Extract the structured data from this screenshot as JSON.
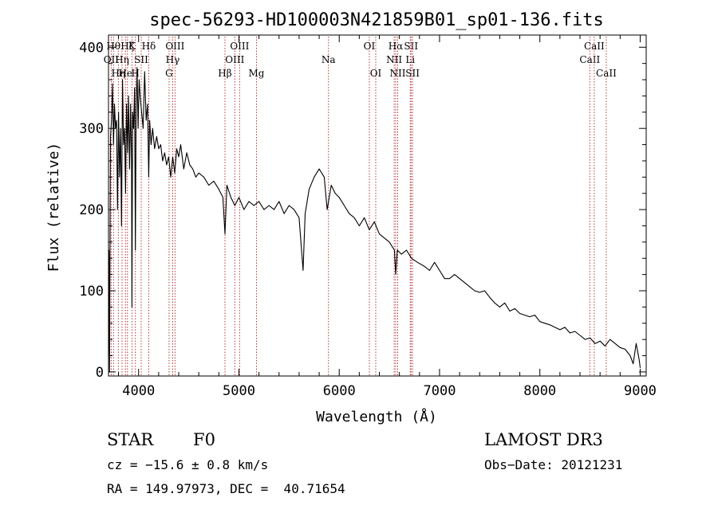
{
  "chart_data": {
    "type": "line",
    "title": "spec-56293-HD100003N421859B01_sp01-136.fits",
    "xlabel": "Wavelength (Å)",
    "ylabel": "Flux (relative)",
    "xlim": [
      3700,
      9060
    ],
    "ylim": [
      -5,
      415
    ],
    "xticks": [
      4000,
      5000,
      6000,
      7000,
      8000,
      9000
    ],
    "yticks": [
      0,
      100,
      200,
      300,
      400
    ],
    "grid": false,
    "line_color": "#000000",
    "marker_color": "#b22222",
    "series": [
      {
        "x": [
          3700,
          3705,
          3710,
          3720,
          3730,
          3740,
          3750,
          3760,
          3770,
          3780,
          3790,
          3800,
          3810,
          3820,
          3830,
          3840,
          3850,
          3860,
          3870,
          3880,
          3890,
          3900,
          3910,
          3920,
          3930,
          3934,
          3940,
          3950,
          3960,
          3968,
          3975,
          3985,
          3995,
          4005,
          4015,
          4030,
          4045,
          4060,
          4075,
          4090,
          4101,
          4110,
          4125,
          4140,
          4160,
          4180,
          4200,
          4220,
          4240,
          4260,
          4280,
          4300,
          4320,
          4340,
          4360,
          4380,
          4400,
          4420,
          4450,
          4480,
          4510,
          4540,
          4570,
          4600,
          4650,
          4700,
          4750,
          4800,
          4840,
          4861,
          4880,
          4920,
          4960,
          5000,
          5050,
          5100,
          5150,
          5200,
          5250,
          5300,
          5350,
          5400,
          5450,
          5500,
          5550,
          5600,
          5640,
          5660,
          5700,
          5750,
          5800,
          5850,
          5880,
          5920,
          5960,
          6000,
          6050,
          6100,
          6150,
          6200,
          6250,
          6300,
          6350,
          6400,
          6450,
          6500,
          6550,
          6563,
          6580,
          6620,
          6670,
          6720,
          6780,
          6850,
          6900,
          6950,
          7000,
          7050,
          7100,
          7150,
          7200,
          7250,
          7300,
          7350,
          7400,
          7450,
          7500,
          7550,
          7600,
          7650,
          7700,
          7750,
          7800,
          7850,
          7900,
          7950,
          8000,
          8050,
          8100,
          8150,
          8200,
          8250,
          8300,
          8350,
          8400,
          8450,
          8500,
          8550,
          8600,
          8650,
          8700,
          8750,
          8800,
          8850,
          8900,
          8930,
          8960,
          8990,
          9000
        ],
        "y": [
          20,
          150,
          0,
          290,
          310,
          355,
          280,
          330,
          300,
          310,
          200,
          320,
          240,
          300,
          180,
          360,
          280,
          300,
          220,
          330,
          270,
          340,
          250,
          330,
          260,
          80,
          320,
          300,
          350,
          150,
          320,
          375,
          300,
          360,
          340,
          320,
          300,
          370,
          310,
          330,
          240,
          310,
          280,
          300,
          275,
          290,
          275,
          280,
          260,
          270,
          255,
          265,
          240,
          265,
          245,
          275,
          265,
          280,
          250,
          270,
          255,
          250,
          240,
          245,
          240,
          230,
          235,
          225,
          215,
          170,
          230,
          215,
          205,
          215,
          200,
          210,
          205,
          210,
          200,
          205,
          200,
          210,
          195,
          205,
          200,
          190,
          125,
          195,
          225,
          240,
          250,
          240,
          200,
          230,
          220,
          215,
          205,
          195,
          190,
          180,
          190,
          175,
          185,
          170,
          165,
          160,
          150,
          120,
          150,
          145,
          150,
          140,
          135,
          130,
          125,
          135,
          125,
          115,
          115,
          120,
          115,
          110,
          105,
          100,
          98,
          100,
          92,
          85,
          80,
          85,
          75,
          78,
          72,
          70,
          68,
          70,
          62,
          60,
          58,
          55,
          52,
          55,
          48,
          50,
          45,
          40,
          42,
          35,
          38,
          32,
          40,
          35,
          30,
          28,
          20,
          10,
          35,
          15,
          5
        ]
      }
    ],
    "line_markers": [
      {
        "x": 3750,
        "label": "Hθ",
        "row": 1
      },
      {
        "x": 3727,
        "label": "OII",
        "row": 2
      },
      {
        "x": 3798,
        "label": "Hη",
        "row": 3
      },
      {
        "x": 3835,
        "label": "Hη",
        "row": 2
      },
      {
        "x": 3889,
        "label": "Hζ",
        "row": 1
      },
      {
        "x": 3934,
        "label": "K",
        "row": 1
      },
      {
        "x": 3869,
        "label": "He",
        "row": 3
      },
      {
        "x": 3968,
        "label": "H",
        "row": 3
      },
      {
        "x": 4026,
        "label": "SII",
        "row": 2
      },
      {
        "x": 4101,
        "label": "Hδ",
        "row": 1
      },
      {
        "x": 4304,
        "label": "G",
        "row": 3
      },
      {
        "x": 4340,
        "label": "Hγ",
        "row": 2
      },
      {
        "x": 4363,
        "label": "OIII",
        "row": 1
      },
      {
        "x": 4861,
        "label": "Hβ",
        "row": 3
      },
      {
        "x": 4959,
        "label": "OIII",
        "row": 2
      },
      {
        "x": 5007,
        "label": "OIII",
        "row": 1
      },
      {
        "x": 5175,
        "label": "Mg",
        "row": 3
      },
      {
        "x": 5893,
        "label": "Na",
        "row": 2
      },
      {
        "x": 6300,
        "label": "OI",
        "row": 1
      },
      {
        "x": 6364,
        "label": "OI",
        "row": 3
      },
      {
        "x": 6548,
        "label": "NII",
        "row": 2
      },
      {
        "x": 6563,
        "label": "Hα",
        "row": 1
      },
      {
        "x": 6583,
        "label": "NII",
        "row": 3
      },
      {
        "x": 6708,
        "label": "Li",
        "row": 2
      },
      {
        "x": 6716,
        "label": "SII",
        "row": 1
      },
      {
        "x": 6731,
        "label": "SII",
        "row": 3
      },
      {
        "x": 8498,
        "label": "CaII",
        "row": 2
      },
      {
        "x": 8542,
        "label": "CaII",
        "row": 1
      },
      {
        "x": 8662,
        "label": "CaII",
        "row": 3
      }
    ]
  },
  "info": {
    "object_class": "STAR",
    "subclass": "F0",
    "survey": "LAMOST DR3",
    "redshift": "cz = −15.6 ± 0.8 km/s",
    "obs_date": "Obs−Date: 20121231",
    "coords": "RA = 149.97973, DEC =  40.71654"
  }
}
